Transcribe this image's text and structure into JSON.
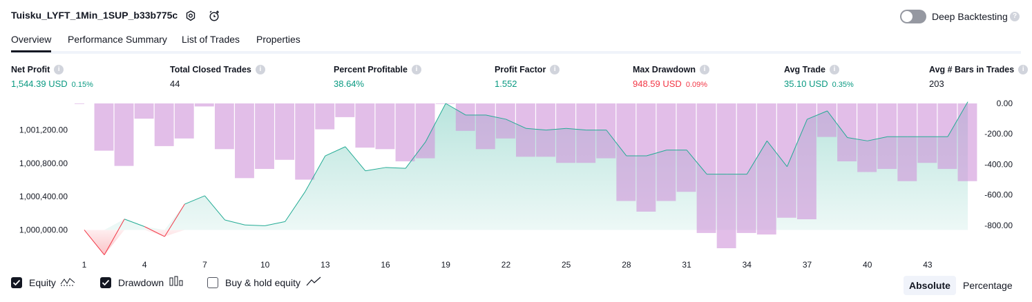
{
  "header": {
    "strategy_name": "Tuisku_LYFT_1Min_1SUP_b33b775c",
    "deep_backtesting_label": "Deep Backtesting",
    "deep_backtesting_enabled": false
  },
  "tabs": [
    {
      "label": "Overview",
      "active": true
    },
    {
      "label": "Performance Summary",
      "active": false
    },
    {
      "label": "List of Trades",
      "active": false
    },
    {
      "label": "Properties",
      "active": false
    }
  ],
  "metrics": [
    {
      "label": "Net Profit",
      "value": "1,544.39 USD",
      "pct": "0.15%",
      "color": "#089981"
    },
    {
      "label": "Total Closed Trades",
      "value": "44",
      "pct": "",
      "color": "#131722"
    },
    {
      "label": "Percent Profitable",
      "value": "38.64%",
      "pct": "",
      "color": "#089981"
    },
    {
      "label": "Profit Factor",
      "value": "1.552",
      "pct": "",
      "color": "#089981"
    },
    {
      "label": "Max Drawdown",
      "value": "948.59 USD",
      "pct": "0.09%",
      "color": "#f23645"
    },
    {
      "label": "Avg Trade",
      "value": "35.10 USD",
      "pct": "0.35%",
      "color": "#089981"
    },
    {
      "label": "Avg # Bars in Trades",
      "value": "203",
      "pct": "",
      "color": "#131722"
    }
  ],
  "chart_data": {
    "type": "line",
    "x": [
      1,
      2,
      3,
      4,
      5,
      6,
      7,
      8,
      9,
      10,
      11,
      12,
      13,
      14,
      15,
      16,
      17,
      18,
      19,
      20,
      21,
      22,
      23,
      24,
      25,
      26,
      27,
      28,
      29,
      30,
      31,
      32,
      33,
      34,
      35,
      36,
      37,
      38,
      39,
      40,
      41,
      42,
      43,
      44,
      45
    ],
    "x_tick_labels": [
      "1",
      "4",
      "7",
      "10",
      "13",
      "16",
      "19",
      "22",
      "25",
      "28",
      "31",
      "34",
      "37",
      "40",
      "43"
    ],
    "left_axis": {
      "ylim": [
        999780,
        1001520
      ],
      "tick_labels": [
        "1,000,000.00",
        "1,000,400.00",
        "1,000,800.00",
        "1,001,200.00"
      ]
    },
    "right_axis": {
      "ylim": [
        -950,
        0
      ],
      "tick_labels": [
        "0.00",
        "-200.00",
        "-400.00",
        "-600.00",
        "-800.00"
      ]
    },
    "series": [
      {
        "name": "Equity",
        "axis": "left",
        "color": "#22ab94",
        "values": [
          1000000,
          999700,
          1000130,
          1000040,
          999920,
          1000310,
          1000410,
          1000120,
          1000060,
          1000050,
          1000100,
          1000460,
          1000890,
          1001000,
          1000710,
          1000750,
          1000740,
          1001060,
          1001520,
          1001380,
          1001380,
          1001330,
          1001220,
          1001200,
          1001220,
          1001200,
          1001200,
          1000890,
          1000890,
          1000960,
          1000960,
          1000670,
          1000670,
          1000670,
          1001070,
          1000760,
          1001330,
          1001430,
          1001110,
          1001070,
          1001120,
          1001120,
          1001120,
          1001120,
          1001540
        ]
      },
      {
        "name": "Drawdown",
        "axis": "right",
        "color": "#ce93d8",
        "values": [
          0,
          -310,
          -410,
          -100,
          -280,
          -230,
          -20,
          -300,
          -490,
          -430,
          -370,
          -500,
          -170,
          -90,
          -290,
          -300,
          -380,
          -360,
          0,
          -180,
          -300,
          -230,
          -350,
          -350,
          -390,
          -390,
          -360,
          -640,
          -710,
          -640,
          -580,
          -850,
          -950,
          -850,
          -860,
          -750,
          -760,
          -220,
          -380,
          -450,
          -430,
          -510,
          -390,
          -430,
          -510
        ]
      }
    ],
    "legend": [
      {
        "label": "Equity",
        "checked": true,
        "icon": "equity-line-icon"
      },
      {
        "label": "Drawdown",
        "checked": true,
        "icon": "drawdown-bars-icon"
      },
      {
        "label": "Buy & hold equity",
        "checked": false,
        "icon": "buy-hold-line-icon"
      }
    ],
    "grid": false
  },
  "view_modes": [
    {
      "label": "Absolute",
      "active": true
    },
    {
      "label": "Percentage",
      "active": false
    }
  ],
  "colors": {
    "profit": "#089981",
    "loss": "#f23645",
    "equity_line": "#22ab94",
    "equity_negative": "#f23645",
    "drawdown_bar": "#ce93d8"
  }
}
